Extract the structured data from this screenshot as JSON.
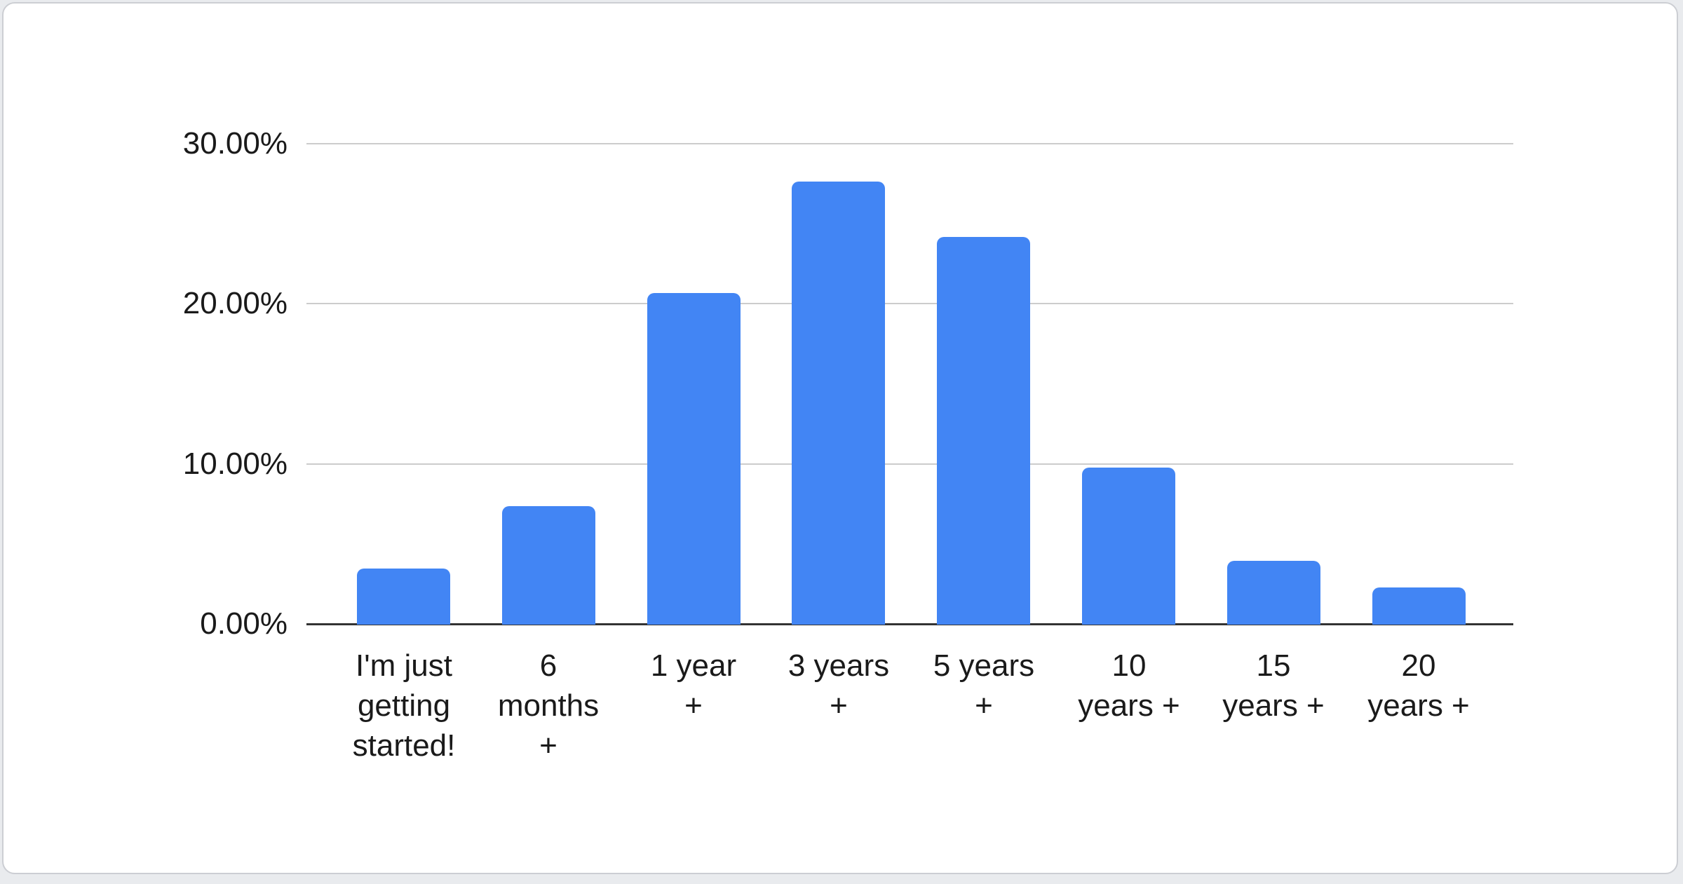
{
  "page": {
    "background_color": "#e9ebee",
    "card_background_color": "#ffffff",
    "card_border_color": "#ccced3"
  },
  "chart_data": {
    "type": "bar",
    "title": "",
    "xlabel": "",
    "ylabel": "",
    "legend": "none",
    "grid": true,
    "unit": "%",
    "categories": [
      "I'm just getting started!",
      "6 months +",
      "1 year +",
      "3 years +",
      "5 years +",
      "10 years +",
      "15 years +",
      "20 years +"
    ],
    "category_label_lines": [
      "I'm just\ngetting\nstarted!",
      "6\nmonths\n+",
      "1 year\n+",
      "3 years\n+",
      "5 years\n+",
      "10\nyears +",
      "15\nyears +",
      "20\nyears +"
    ],
    "values": [
      3.5,
      7.4,
      20.7,
      27.7,
      24.2,
      9.8,
      4.0,
      2.3
    ],
    "ylim": [
      0,
      30
    ],
    "y_ticks": [
      {
        "value": 0,
        "label": "0.00%"
      },
      {
        "value": 10,
        "label": "10.00%"
      },
      {
        "value": 20,
        "label": "20.00%"
      },
      {
        "value": 30,
        "label": "30.00%"
      }
    ],
    "bar_color": "#4285f4",
    "gridline_color": "#cccccc",
    "axis_line_color": "#333333",
    "text_color": "#1a1a1a"
  }
}
